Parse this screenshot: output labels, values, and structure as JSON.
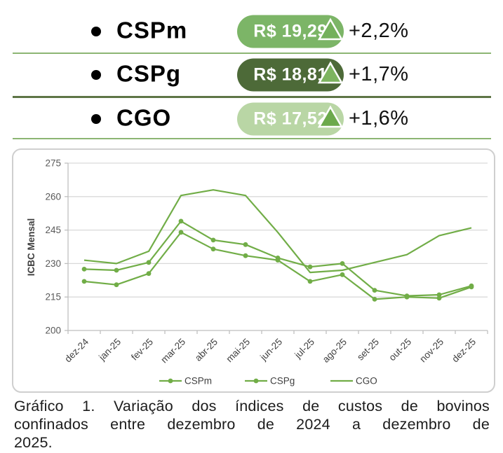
{
  "summary": {
    "rows": [
      {
        "label": "CSPm",
        "value": "R$ 19,29",
        "change": "+2,2%",
        "direction_icon": "triangle-up",
        "pill_color": "#7CB567",
        "triangle_color": "#74B05C",
        "separator_color": "#8CB573",
        "separator_thickness": 2
      },
      {
        "label": "CSPg",
        "value": "R$ 18,81",
        "change": "+1,7%",
        "direction_icon": "triangle-up",
        "pill_color": "#4D6A38",
        "triangle_color": "#7DB45F",
        "separator_color": "#5E7546",
        "separator_thickness": 3
      },
      {
        "label": "CGO",
        "value": "R$ 17,52",
        "change": "+1,6%",
        "direction_icon": "triangle-up",
        "pill_color": "#B9D6A5",
        "triangle_color": "#6CA94C",
        "separator_color": "#8CB573",
        "separator_thickness": 2
      }
    ]
  },
  "chart_data": {
    "type": "line",
    "title": "",
    "xlabel": "",
    "ylabel": "ICBC Mensal",
    "ylim": [
      200,
      275
    ],
    "yticks": [
      200,
      215,
      230,
      245,
      260,
      275
    ],
    "grid": true,
    "legend_position": "bottom",
    "line_color": "#71AD47",
    "grid_color": "#D9D9D9",
    "axis_color": "#BFBFBF",
    "tick_label_color": "#595959",
    "xtick_label_color": "#404040",
    "legend_text_color": "#404040",
    "categories": [
      "dez-24",
      "jan-25",
      "fev-25",
      "mar-25",
      "abr-25",
      "mai-25",
      "jun-25",
      "jul-25",
      "ago-25",
      "set-25",
      "out-25",
      "nov-25",
      "dez-25"
    ],
    "series": [
      {
        "name": "CSPm",
        "marker": true,
        "values": [
          227.5,
          227,
          230.5,
          249,
          240.5,
          238.5,
          232.5,
          228.5,
          230,
          218,
          215.5,
          216,
          220
        ]
      },
      {
        "name": "CSPg",
        "marker": true,
        "values": [
          222,
          220.5,
          225.5,
          244,
          236.5,
          233.5,
          231.5,
          222,
          225,
          214,
          215,
          214.5,
          219.5
        ]
      },
      {
        "name": "CGO",
        "marker": false,
        "values": [
          231.5,
          230,
          235.5,
          260.5,
          263,
          260.5,
          244,
          226,
          227,
          230.5,
          234,
          242.5,
          246
        ]
      }
    ]
  },
  "caption": {
    "lines": [
      "Gráfico 1. Variação dos índices de custos de bovinos",
      "confinados entre dezembro de 2024 a dezembro de",
      "2025."
    ]
  }
}
